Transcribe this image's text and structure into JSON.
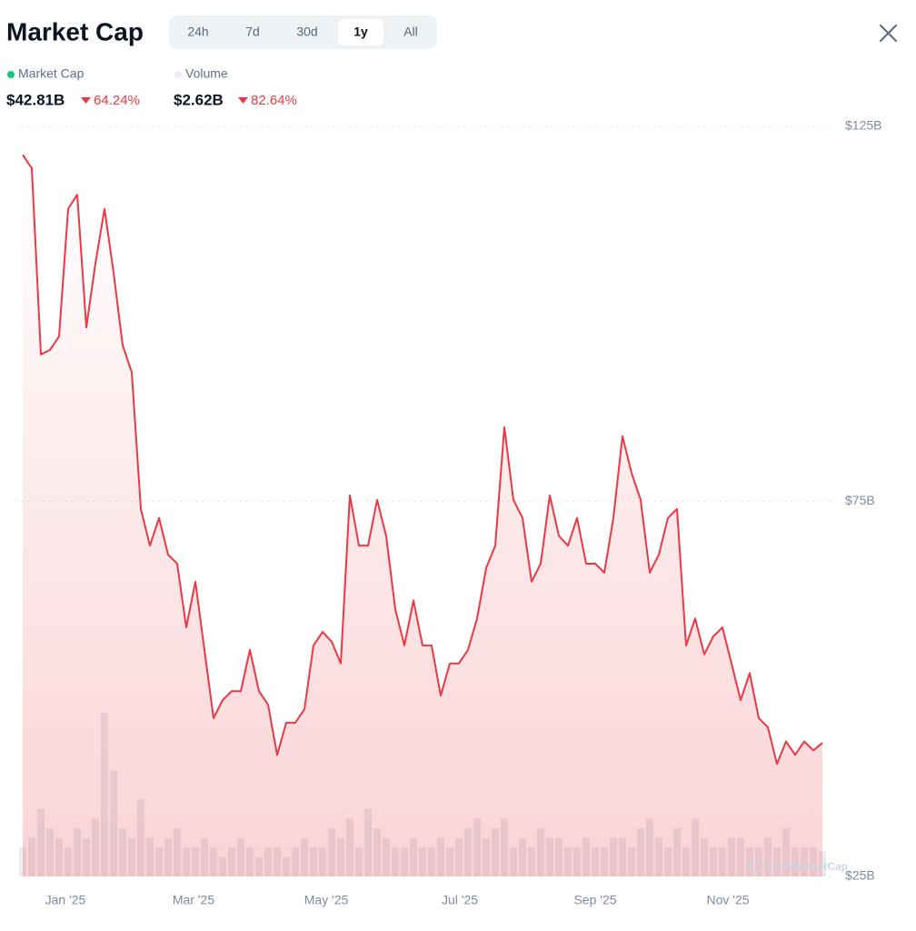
{
  "header": {
    "title": "Market Cap",
    "tabs": [
      "24h",
      "7d",
      "30d",
      "1y",
      "All"
    ],
    "active_tab": 3
  },
  "chart_data": {
    "type": "line",
    "series": [
      {
        "name": "Market Cap",
        "color": "#ea3943",
        "legend_color": "#16c784",
        "summary_value": "$42.81B",
        "change": "64.24%",
        "values": [
          121.2,
          119.4,
          94.6,
          95.2,
          97,
          114,
          115.9,
          98.2,
          106.7,
          114,
          105.5,
          95.8,
          92.2,
          74,
          69.1,
          72.8,
          67.9,
          66.7,
          58.2,
          64.3,
          55.2,
          46.1,
          48.5,
          49.7,
          49.7,
          55.2,
          49.7,
          47.9,
          41.2,
          45.5,
          45.5,
          47.3,
          55.8,
          57.6,
          56.3,
          53.4,
          75.8,
          69.1,
          69.1,
          75.2,
          70.4,
          60.6,
          55.8,
          61.8,
          55.8,
          55.8,
          49.1,
          53.4,
          53.4,
          55.2,
          59.4,
          66.1,
          69.1,
          84.9,
          75.2,
          72.8,
          64.3,
          66.7,
          75.8,
          70.4,
          69.1,
          72.8,
          66.7,
          66.7,
          65.5,
          72.8,
          83.7,
          78.8,
          75.2,
          65.5,
          67.9,
          72.8,
          74,
          55.8,
          59.4,
          54.6,
          57,
          58.2,
          53.4,
          48.5,
          52.1,
          46.1,
          44.9,
          40,
          43,
          41.2,
          43,
          41.8,
          42.81
        ]
      },
      {
        "name": "Volume",
        "type": "bar",
        "color": "#e9ebf0",
        "legend_color": "#eceef2",
        "summary_value": "$2.62B",
        "change": "82.64%",
        "values": [
          3,
          4,
          7,
          5,
          4,
          3,
          5,
          4,
          6,
          17,
          11,
          5,
          4,
          8,
          4,
          3,
          4,
          5,
          3,
          3,
          4,
          3,
          2,
          3,
          4,
          3,
          2,
          3,
          3,
          2,
          3,
          4,
          3,
          3,
          5,
          4,
          6,
          3,
          7,
          5,
          4,
          3,
          3,
          4,
          3,
          3,
          4,
          3,
          4,
          5,
          6,
          4,
          5,
          6,
          3,
          4,
          3,
          5,
          4,
          4,
          3,
          3,
          4,
          3,
          3,
          4,
          4,
          3,
          5,
          6,
          4,
          3,
          5,
          3,
          6,
          4,
          3,
          3,
          4,
          4,
          3,
          3,
          4,
          3,
          5,
          3,
          3,
          3,
          2.62
        ]
      }
    ],
    "xlim": [
      0,
      88
    ],
    "xticks": [
      {
        "value": 4.7,
        "label": "Jan '25"
      },
      {
        "value": 18.8,
        "label": "Mar '25"
      },
      {
        "value": 33.4,
        "label": "May '25"
      },
      {
        "value": 48.1,
        "label": "Jul '25"
      },
      {
        "value": 63,
        "label": "Sep '25"
      },
      {
        "value": 77.6,
        "label": "Nov '25"
      }
    ],
    "ylim": [
      25,
      125
    ],
    "yticks": [
      {
        "value": 125,
        "label": "$125B"
      },
      {
        "value": 75,
        "label": "$75B"
      },
      {
        "value": 25,
        "label": "$25B"
      }
    ],
    "grid": true,
    "watermark": "CoinMarketCap"
  }
}
